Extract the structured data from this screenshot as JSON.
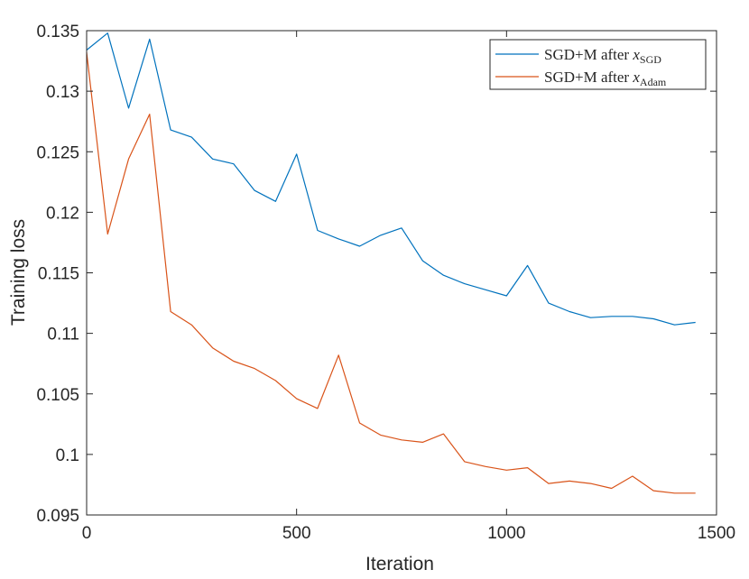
{
  "chart_data": {
    "type": "line",
    "title": "",
    "xlabel": "Iteration",
    "ylabel": "Training loss",
    "xlim": [
      0,
      1500
    ],
    "ylim": [
      0.095,
      0.135
    ],
    "x_ticks": [
      "0",
      "500",
      "1000",
      "1500"
    ],
    "y_ticks": [
      "0.095",
      "0.1",
      "0.105",
      "0.11",
      "0.115",
      "0.12",
      "0.125",
      "0.13",
      "0.135"
    ],
    "grid": false,
    "legend_position": "top-right",
    "x": [
      0,
      50,
      100,
      150,
      200,
      250,
      300,
      350,
      400,
      450,
      500,
      550,
      600,
      650,
      700,
      750,
      800,
      850,
      900,
      950,
      1000,
      1050,
      1100,
      1150,
      1200,
      1250,
      1300,
      1350,
      1400,
      1450
    ],
    "series": [
      {
        "name": "SGD+M after x_SGD",
        "legend_prefix": "SGD+M after ",
        "legend_var": "x",
        "legend_sub": "SGD",
        "color": "#0072BD",
        "values": [
          0.1334,
          0.1348,
          0.1286,
          0.1343,
          0.1268,
          0.1262,
          0.1244,
          0.124,
          0.1218,
          0.1209,
          0.1248,
          0.1185,
          0.1178,
          0.1172,
          0.1181,
          0.1187,
          0.116,
          0.1148,
          0.1141,
          0.1136,
          0.1131,
          0.1156,
          0.1125,
          0.1118,
          0.1113,
          0.1114,
          0.1114,
          0.1112,
          0.1107,
          0.1109
        ]
      },
      {
        "name": "SGD+M after x_Adam",
        "legend_prefix": "SGD+M after ",
        "legend_var": "x",
        "legend_sub": "Adam",
        "color": "#D95319",
        "values": [
          0.1332,
          0.1182,
          0.1244,
          0.1281,
          0.1118,
          0.1107,
          0.1088,
          0.1077,
          0.1071,
          0.1061,
          0.1046,
          0.1038,
          0.1082,
          0.1026,
          0.1016,
          0.1012,
          0.101,
          0.1017,
          0.0994,
          0.099,
          0.0987,
          0.0989,
          0.0976,
          0.0978,
          0.0976,
          0.0972,
          0.0982,
          0.097,
          0.0968,
          0.0968
        ]
      }
    ]
  }
}
